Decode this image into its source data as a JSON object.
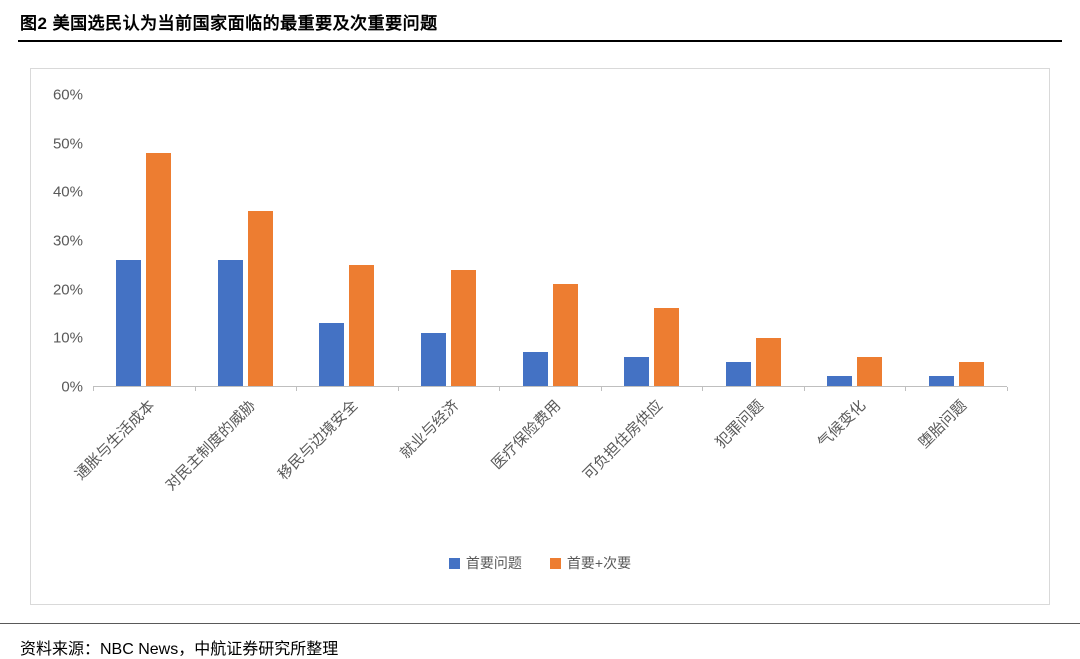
{
  "page": {
    "title": "图2  美国选民认为当前国家面临的最重要及次重要问题",
    "source": "资料来源：NBC News，中航证券研究所整理"
  },
  "colors": {
    "primary_series": "#4472c4",
    "secondary_series": "#ed7d31",
    "axis_text": "#595959",
    "axis_line": "#bfbfbf",
    "panel_border": "#d9d9d9"
  },
  "chart_data": {
    "type": "bar",
    "title": "美国选民认为当前国家面临的最重要及次重要问题",
    "categories": [
      "通胀与生活成本",
      "对民主制度的威胁",
      "移民与边境安全",
      "就业与经济",
      "医疗保险费用",
      "可负担住房供应",
      "犯罪问题",
      "气候变化",
      "堕胎问题"
    ],
    "series": [
      {
        "name": "首要问题",
        "color_key": "primary_series",
        "values": [
          26,
          26,
          13,
          11,
          7,
          6,
          5,
          2,
          2
        ]
      },
      {
        "name": "首要+次要",
        "color_key": "secondary_series",
        "values": [
          48,
          36,
          25,
          24,
          21,
          16,
          10,
          6,
          5
        ]
      }
    ],
    "xlabel": "",
    "ylabel": "",
    "ylim": [
      0,
      60
    ],
    "ytick_labels": [
      "60%",
      "50%",
      "40%",
      "30%",
      "20%",
      "10%",
      "0%"
    ],
    "grid": false,
    "legend_position": "bottom",
    "value_unit": "%"
  }
}
